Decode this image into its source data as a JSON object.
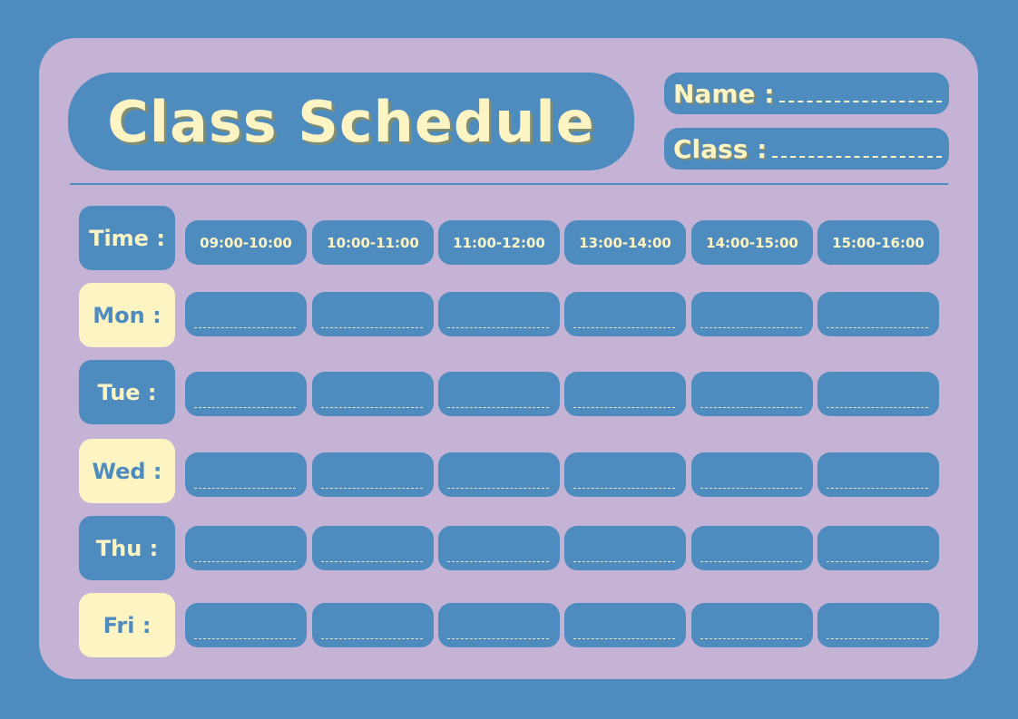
{
  "title": "Class Schedule",
  "fields": {
    "name_label": "Name :",
    "class_label": "Class :"
  },
  "time_label": "Time :",
  "times": [
    "09:00-10:00",
    "10:00-11:00",
    "11:00-12:00",
    "13:00-14:00",
    "14:00-15:00",
    "15:00-16:00"
  ],
  "days": [
    {
      "label": "Mon :",
      "style": "cream"
    },
    {
      "label": "Tue :",
      "style": "blue"
    },
    {
      "label": "Wed :",
      "style": "cream"
    },
    {
      "label": "Thu :",
      "style": "blue"
    },
    {
      "label": "Fri :",
      "style": "cream"
    }
  ],
  "colors": {
    "background": "#4e8bbf",
    "card": "#c4b3d5",
    "accent": "#fdf4c4"
  }
}
